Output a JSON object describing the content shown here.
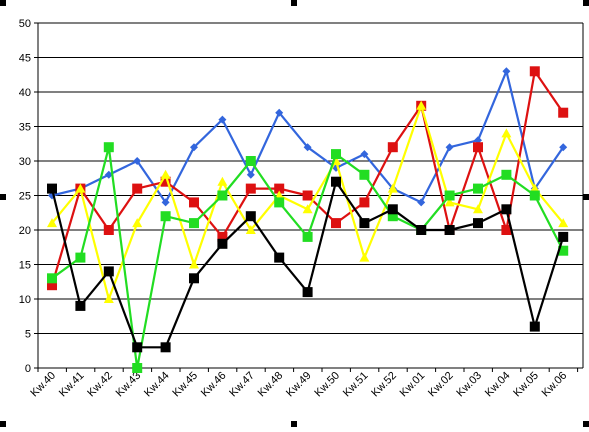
{
  "chart_data": {
    "type": "line",
    "categories": [
      "Kw.40",
      "Kw.41",
      "Kw.42",
      "Kw.43",
      "Kw.44",
      "Kw.45",
      "Kw.46",
      "Kw.47",
      "Kw.48",
      "Kw.49",
      "Kw.50",
      "Kw.51",
      "Kw.52",
      "Kw.01",
      "Kw.02",
      "Kw.03",
      "Kw.04",
      "Kw.05",
      "Kw.06"
    ],
    "ylim": [
      0,
      50
    ],
    "yticks": [
      0,
      5,
      10,
      15,
      20,
      25,
      30,
      35,
      40,
      45,
      50
    ],
    "grid": true,
    "legend": "none",
    "series": [
      {
        "color": "#3366dd",
        "marker": "diamond",
        "values": [
          25,
          26,
          28,
          30,
          24,
          32,
          36,
          28,
          37,
          32,
          29,
          31,
          26,
          24,
          32,
          33,
          43,
          26,
          32
        ]
      },
      {
        "color": "#dd1111",
        "marker": "square",
        "values": [
          12,
          26,
          20,
          26,
          27,
          24,
          19,
          26,
          26,
          25,
          21,
          24,
          32,
          38,
          20,
          32,
          20,
          43,
          37
        ]
      },
      {
        "color": "#ffff00",
        "marker": "triangle",
        "values": [
          21,
          26,
          10,
          21,
          28,
          15,
          27,
          20,
          25,
          23,
          30,
          16,
          26,
          38,
          24,
          23,
          34,
          26,
          21
        ]
      },
      {
        "color": "#22dd22",
        "marker": "square",
        "values": [
          13,
          16,
          32,
          0,
          22,
          21,
          25,
          30,
          24,
          19,
          31,
          28,
          22,
          20,
          25,
          26,
          28,
          25,
          17
        ]
      },
      {
        "color": "#000000",
        "marker": "square",
        "values": [
          26,
          9,
          14,
          3,
          3,
          13,
          18,
          22,
          16,
          11,
          27,
          21,
          23,
          20,
          20,
          21,
          23,
          6,
          19
        ]
      }
    ]
  }
}
